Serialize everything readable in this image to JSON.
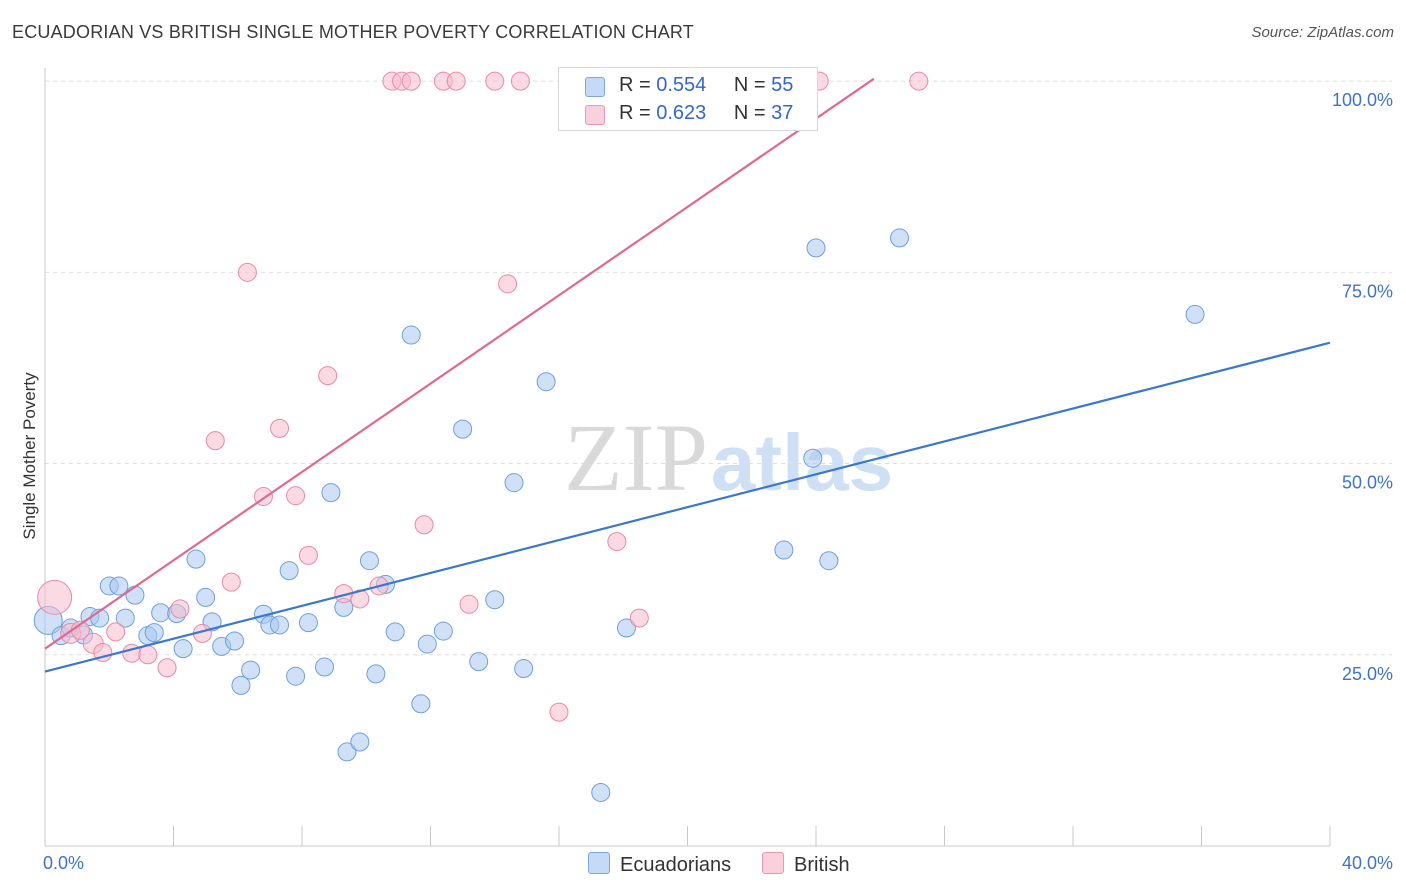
{
  "title": "ECUADORIAN VS BRITISH SINGLE MOTHER POVERTY CORRELATION CHART",
  "source": "Source: ZipAtlas.com",
  "watermark": {
    "zip": "ZIP",
    "atlas": "atlas"
  },
  "legend": {
    "rows": [
      {
        "r_label": "R =",
        "r_value": "0.554",
        "n_label": "N =",
        "n_value": "55"
      },
      {
        "r_label": "R =",
        "r_value": "0.623",
        "n_label": "N =",
        "n_value": "37"
      }
    ]
  },
  "colors": {
    "ecuadorian_fill": "#aac8f0",
    "ecuadorian_stroke": "#6f9fdc",
    "ecuadorian_line": "#3a78d0",
    "british_fill": "#f7bccd",
    "british_stroke": "#e889a8",
    "british_line": "#e06890",
    "grid": "#dddddd",
    "tick_label": "#3f73c4"
  },
  "chart_data": {
    "type": "scatter",
    "title": "ECUADORIAN VS BRITISH SINGLE MOTHER POVERTY CORRELATION CHART",
    "xlabel": "",
    "ylabel": "Single Mother Poverty",
    "xlim": [
      0,
      40
    ],
    "ylim": [
      0,
      102.5
    ],
    "x_tick_labels": [
      "0.0%",
      "40.0%"
    ],
    "y_ticks": [
      25,
      50,
      75,
      100
    ],
    "y_tick_labels": [
      "25.0%",
      "50.0%",
      "75.0%",
      "100.0%"
    ],
    "grid": true,
    "legend_position": "bottom-center",
    "series": [
      {
        "name": "Ecuadorians",
        "color": "#aac8f0",
        "trend": {
          "x": [
            0,
            40
          ],
          "y": [
            22.8,
            65.8
          ]
        },
        "points": [
          {
            "x": 0.1,
            "y": 29.5,
            "s": 14
          },
          {
            "x": 0.5,
            "y": 27.5,
            "s": 9
          },
          {
            "x": 0.8,
            "y": 28.5,
            "s": 9
          },
          {
            "x": 1.2,
            "y": 27.6,
            "s": 9
          },
          {
            "x": 1.4,
            "y": 30.0,
            "s": 9
          },
          {
            "x": 1.7,
            "y": 29.8,
            "s": 9
          },
          {
            "x": 2.0,
            "y": 34.0,
            "s": 9
          },
          {
            "x": 2.3,
            "y": 34.0,
            "s": 9
          },
          {
            "x": 2.5,
            "y": 29.8,
            "s": 9
          },
          {
            "x": 2.8,
            "y": 32.8,
            "s": 9
          },
          {
            "x": 3.2,
            "y": 27.5,
            "s": 9
          },
          {
            "x": 3.4,
            "y": 27.9,
            "s": 9
          },
          {
            "x": 3.6,
            "y": 30.5,
            "s": 9
          },
          {
            "x": 4.1,
            "y": 30.4,
            "s": 9
          },
          {
            "x": 4.3,
            "y": 25.8,
            "s": 9
          },
          {
            "x": 4.7,
            "y": 37.5,
            "s": 9
          },
          {
            "x": 5.0,
            "y": 32.5,
            "s": 9
          },
          {
            "x": 5.2,
            "y": 29.3,
            "s": 9
          },
          {
            "x": 5.5,
            "y": 26.1,
            "s": 9
          },
          {
            "x": 5.9,
            "y": 26.8,
            "s": 9
          },
          {
            "x": 6.1,
            "y": 21.0,
            "s": 9
          },
          {
            "x": 6.4,
            "y": 23.0,
            "s": 9
          },
          {
            "x": 6.8,
            "y": 30.3,
            "s": 9
          },
          {
            "x": 7.0,
            "y": 28.9,
            "s": 9
          },
          {
            "x": 7.3,
            "y": 28.9,
            "s": 9
          },
          {
            "x": 7.6,
            "y": 36.0,
            "s": 9
          },
          {
            "x": 7.8,
            "y": 22.2,
            "s": 9
          },
          {
            "x": 8.2,
            "y": 29.2,
            "s": 9
          },
          {
            "x": 8.7,
            "y": 23.4,
            "s": 9
          },
          {
            "x": 8.9,
            "y": 46.2,
            "s": 9
          },
          {
            "x": 9.3,
            "y": 31.2,
            "s": 9
          },
          {
            "x": 9.4,
            "y": 12.3,
            "s": 9
          },
          {
            "x": 9.8,
            "y": 13.6,
            "s": 9
          },
          {
            "x": 10.1,
            "y": 37.3,
            "s": 9
          },
          {
            "x": 10.3,
            "y": 22.5,
            "s": 9
          },
          {
            "x": 10.6,
            "y": 34.2,
            "s": 9
          },
          {
            "x": 10.9,
            "y": 28.0,
            "s": 9
          },
          {
            "x": 11.4,
            "y": 66.8,
            "s": 9
          },
          {
            "x": 11.7,
            "y": 18.6,
            "s": 9
          },
          {
            "x": 11.9,
            "y": 26.4,
            "s": 9
          },
          {
            "x": 12.4,
            "y": 28.1,
            "s": 9
          },
          {
            "x": 13.0,
            "y": 54.5,
            "s": 9
          },
          {
            "x": 13.5,
            "y": 24.1,
            "s": 9
          },
          {
            "x": 14.0,
            "y": 32.2,
            "s": 9
          },
          {
            "x": 14.6,
            "y": 47.5,
            "s": 9
          },
          {
            "x": 14.9,
            "y": 23.2,
            "s": 9
          },
          {
            "x": 15.6,
            "y": 60.7,
            "s": 9
          },
          {
            "x": 17.3,
            "y": 7.0,
            "s": 9
          },
          {
            "x": 18.1,
            "y": 28.5,
            "s": 9
          },
          {
            "x": 23.0,
            "y": 38.7,
            "s": 9
          },
          {
            "x": 23.9,
            "y": 50.7,
            "s": 9
          },
          {
            "x": 24.0,
            "y": 78.2,
            "s": 9
          },
          {
            "x": 24.4,
            "y": 37.3,
            "s": 9
          },
          {
            "x": 26.6,
            "y": 79.5,
            "s": 9
          },
          {
            "x": 35.8,
            "y": 69.5,
            "s": 9
          }
        ]
      },
      {
        "name": "British",
        "color": "#f7bccd",
        "trend": {
          "x": [
            0,
            25.8
          ],
          "y": [
            25.8,
            100.3
          ]
        },
        "points": [
          {
            "x": 0.3,
            "y": 32.5,
            "s": 17
          },
          {
            "x": 0.8,
            "y": 27.8,
            "s": 10
          },
          {
            "x": 1.1,
            "y": 28.2,
            "s": 9
          },
          {
            "x": 1.5,
            "y": 26.5,
            "s": 10
          },
          {
            "x": 1.8,
            "y": 25.3,
            "s": 9
          },
          {
            "x": 2.2,
            "y": 28.0,
            "s": 9
          },
          {
            "x": 2.7,
            "y": 25.2,
            "s": 9
          },
          {
            "x": 3.2,
            "y": 25.0,
            "s": 9
          },
          {
            "x": 3.8,
            "y": 23.3,
            "s": 9
          },
          {
            "x": 4.2,
            "y": 31.0,
            "s": 9
          },
          {
            "x": 4.9,
            "y": 27.8,
            "s": 9
          },
          {
            "x": 5.3,
            "y": 53.0,
            "s": 9
          },
          {
            "x": 5.8,
            "y": 34.5,
            "s": 9
          },
          {
            "x": 6.3,
            "y": 75.0,
            "s": 9
          },
          {
            "x": 6.8,
            "y": 45.7,
            "s": 9
          },
          {
            "x": 7.3,
            "y": 54.6,
            "s": 9
          },
          {
            "x": 7.8,
            "y": 45.8,
            "s": 9
          },
          {
            "x": 8.2,
            "y": 38.0,
            "s": 9
          },
          {
            "x": 8.8,
            "y": 61.5,
            "s": 9
          },
          {
            "x": 9.3,
            "y": 33.0,
            "s": 9
          },
          {
            "x": 9.8,
            "y": 32.3,
            "s": 9
          },
          {
            "x": 10.4,
            "y": 34.0,
            "s": 9
          },
          {
            "x": 10.8,
            "y": 100.0,
            "s": 9
          },
          {
            "x": 11.1,
            "y": 100.0,
            "s": 9
          },
          {
            "x": 11.4,
            "y": 100.0,
            "s": 9
          },
          {
            "x": 11.8,
            "y": 42.0,
            "s": 9
          },
          {
            "x": 12.4,
            "y": 100.0,
            "s": 9
          },
          {
            "x": 12.8,
            "y": 100.0,
            "s": 9
          },
          {
            "x": 13.2,
            "y": 31.6,
            "s": 9
          },
          {
            "x": 14.0,
            "y": 100.0,
            "s": 9
          },
          {
            "x": 14.4,
            "y": 73.5,
            "s": 9
          },
          {
            "x": 14.8,
            "y": 100.0,
            "s": 9
          },
          {
            "x": 16.0,
            "y": 17.5,
            "s": 9
          },
          {
            "x": 17.8,
            "y": 39.8,
            "s": 9
          },
          {
            "x": 18.5,
            "y": 29.8,
            "s": 9
          },
          {
            "x": 24.1,
            "y": 100.0,
            "s": 9
          },
          {
            "x": 27.2,
            "y": 100.0,
            "s": 9
          }
        ]
      }
    ]
  }
}
